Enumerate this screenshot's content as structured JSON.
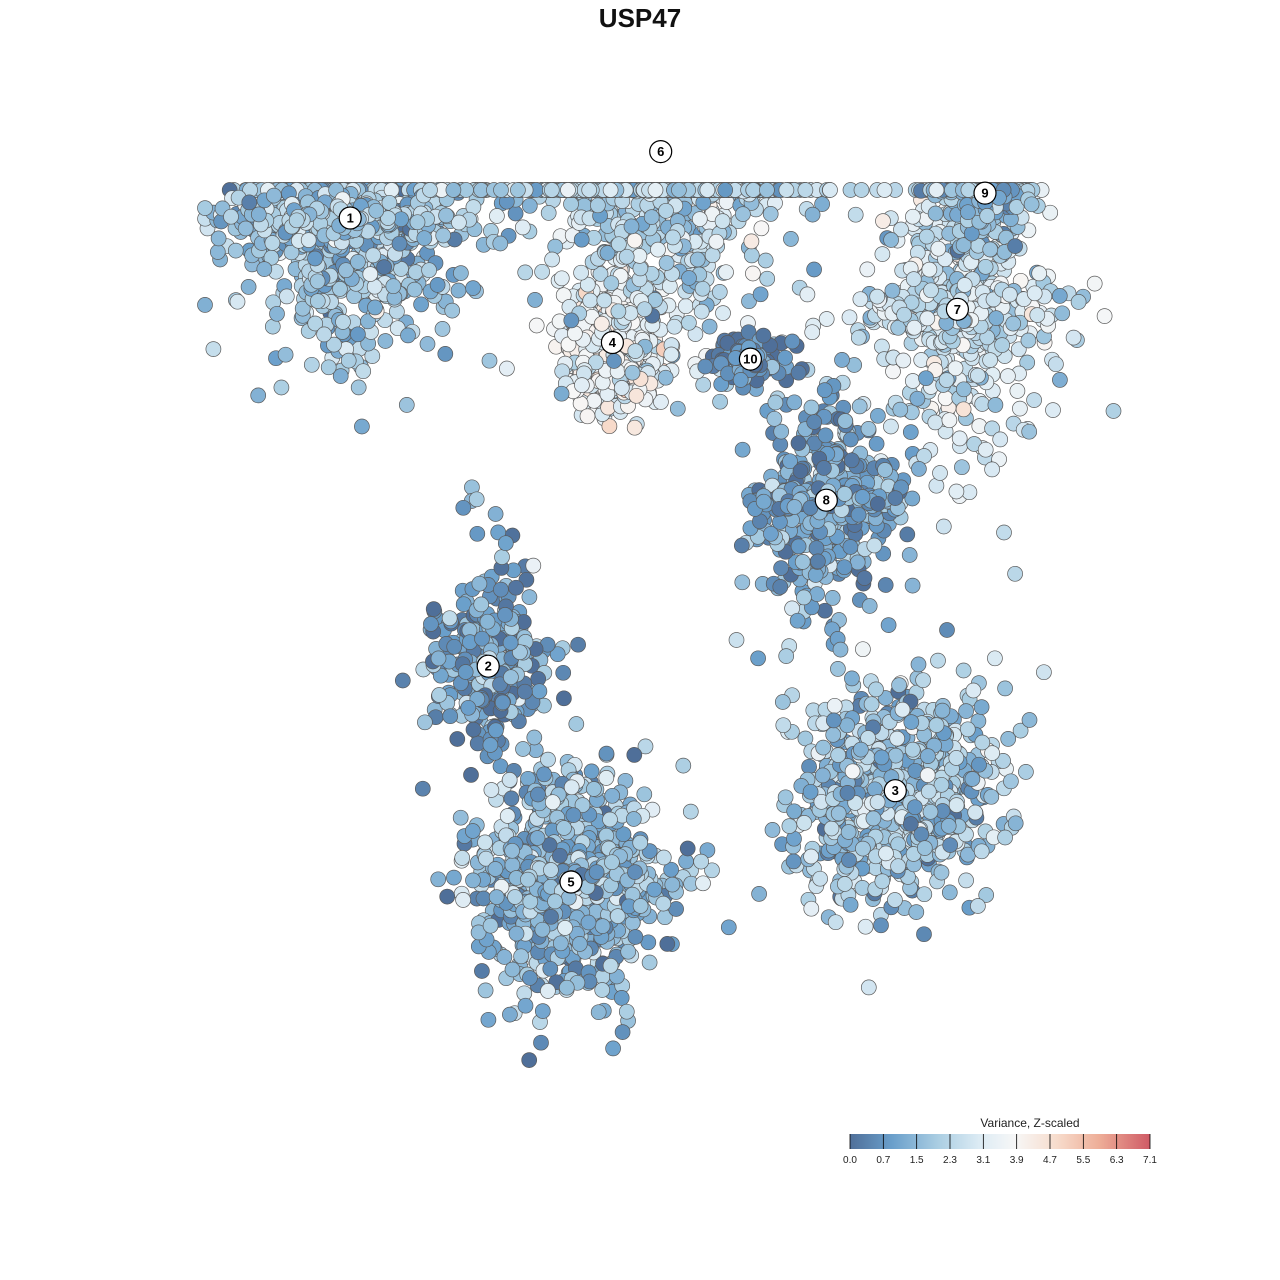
{
  "chart_data": {
    "type": "scatter",
    "title": "USP47",
    "xlabel": "",
    "ylabel": "",
    "grid": false,
    "legend_position": "bottom-right",
    "colorbar": {
      "title": "Variance, Z-scaled",
      "min": 0.0,
      "max": 7.1,
      "ticks": [
        "0.0",
        "0.7",
        "1.5",
        "2.3",
        "3.1",
        "3.9",
        "4.7",
        "5.5",
        "6.3",
        "7.1"
      ],
      "colors": [
        "#4f6f99",
        "#6a9fcb",
        "#a9cde2",
        "#dcebf4",
        "#f7f7f7",
        "#f7dccc",
        "#eeae98",
        "#cf5a65"
      ]
    },
    "clusters": [
      {
        "label": "1",
        "x": -4.2,
        "y": 4.0,
        "level": 1.8
      },
      {
        "label": "2",
        "x": -2.2,
        "y": -1.4,
        "level": 1.1
      },
      {
        "label": "3",
        "x": 3.7,
        "y": -2.9,
        "level": 1.9
      },
      {
        "label": "4",
        "x": -0.4,
        "y": 2.5,
        "level": 3.6
      },
      {
        "label": "5",
        "x": -1.0,
        "y": -4.0,
        "level": 1.6
      },
      {
        "label": "6",
        "x": 0.3,
        "y": 4.8,
        "level": 2.3
      },
      {
        "label": "7",
        "x": 4.6,
        "y": 2.9,
        "level": 2.8
      },
      {
        "label": "8",
        "x": 2.7,
        "y": 0.6,
        "level": 1.1
      },
      {
        "label": "9",
        "x": 5.0,
        "y": 4.3,
        "level": 1.8
      },
      {
        "label": "10",
        "x": 1.6,
        "y": 2.3,
        "level": 0.5
      }
    ]
  }
}
